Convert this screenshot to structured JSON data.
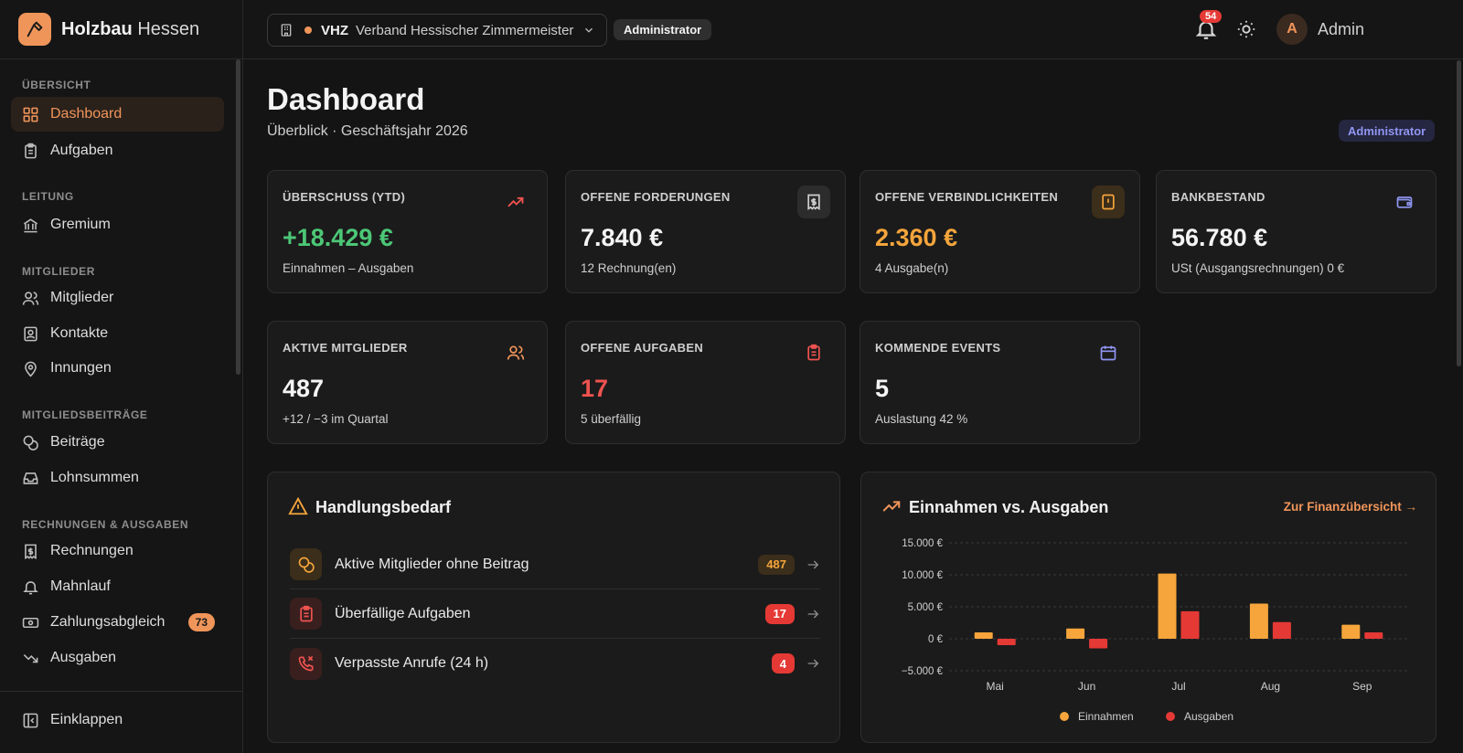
{
  "brand": {
    "name_bold": "Holzbau",
    "name_light": "Hessen"
  },
  "topbar": {
    "org_abbr": "VHZ",
    "org_name": "Verband Hessischer Zimmermeister",
    "role": "Administrator",
    "notifications": "54",
    "avatar_initial": "A",
    "user_name": "Admin"
  },
  "sidebar": {
    "sections": [
      {
        "title": "ÜBERSICHT"
      },
      {
        "title": "LEITUNG"
      },
      {
        "title": "MITGLIEDER"
      },
      {
        "title": "MITGLIEDSBEITRÄGE"
      },
      {
        "title": "RECHNUNGEN & AUSGABEN"
      }
    ],
    "items": [
      {
        "label": "Dashboard",
        "icon": "grid-icon"
      },
      {
        "label": "Aufgaben",
        "icon": "clipboard-icon"
      },
      {
        "label": "Gremium",
        "icon": "bank-icon"
      },
      {
        "label": "Mitglieder",
        "icon": "users-icon"
      },
      {
        "label": "Kontakte",
        "icon": "contact-icon"
      },
      {
        "label": "Innungen",
        "icon": "map-pin-icon"
      },
      {
        "label": "Beiträge",
        "icon": "coins-icon"
      },
      {
        "label": "Lohnsummen",
        "icon": "inbox-icon"
      },
      {
        "label": "Rechnungen",
        "icon": "receipt-icon"
      },
      {
        "label": "Mahnlauf",
        "icon": "bell-icon"
      },
      {
        "label": "Zahlungsabgleich",
        "icon": "banknote-icon",
        "badge": "73"
      },
      {
        "label": "Ausgaben",
        "icon": "trending-down-icon"
      }
    ],
    "collapse_label": "Einklappen"
  },
  "page": {
    "title": "Dashboard",
    "subtitle": "Überblick · Geschäftsjahr 2026",
    "role_badge": "Administrator"
  },
  "kpis": [
    {
      "label": "ÜBERSCHUSS (YTD)",
      "value": "+18.429 €",
      "note": "Einnahmen – Ausgaben",
      "color": "#4cc776",
      "icon": "trending-up-icon"
    },
    {
      "label": "OFFENE FORDERUNGEN",
      "value": "7.840 €",
      "note": "12 Rechnung(en)",
      "color": "#f4f4f4",
      "icon": "receipt-icon"
    },
    {
      "label": "OFFENE VERBINDLICHKEITEN",
      "value": "2.360 €",
      "note": "4 Ausgabe(n)",
      "color": "#f5a53b",
      "icon": "alert-file-icon"
    },
    {
      "label": "BANKBESTAND",
      "value": "56.780 €",
      "note": "USt (Ausgangsrechnungen) 0 €",
      "color": "#f4f4f4",
      "icon": "wallet-icon"
    },
    {
      "label": "AKTIVE MITGLIEDER",
      "value": "487",
      "note": "+12 / −3 im Quartal",
      "color": "#f4f4f4",
      "icon": "users-icon"
    },
    {
      "label": "OFFENE AUFGABEN",
      "value": "17",
      "note": "5 überfällig",
      "color": "#ef5350",
      "icon": "clipboard-icon"
    },
    {
      "label": "KOMMENDE EVENTS",
      "value": "5",
      "note": "Auslastung 42 %",
      "color": "#f4f4f4",
      "icon": "calendar-icon"
    }
  ],
  "actions": {
    "title": "Handlungsbedarf",
    "items": [
      {
        "label": "Aktive Mitglieder ohne Beitrag",
        "count": "487",
        "icon": "coins-icon"
      },
      {
        "label": "Überfällige Aufgaben",
        "count": "17",
        "icon": "clipboard-icon"
      },
      {
        "label": "Verpasste Anrufe (24 h)",
        "count": "4",
        "icon": "phone-missed-icon"
      }
    ]
  },
  "finance": {
    "title": "Einnahmen vs. Ausgaben",
    "link": "Zur Finanzübersicht →"
  },
  "chart_data": {
    "type": "bar",
    "title": "Einnahmen vs. Ausgaben",
    "categories": [
      "Mai",
      "Jun",
      "Jul",
      "Aug",
      "Sep"
    ],
    "series": [
      {
        "name": "Einnahmen",
        "values": [
          1000,
          1600,
          10200,
          5500,
          2200
        ],
        "color": "#f5a53b"
      },
      {
        "name": "Ausgaben",
        "values": [
          -1000,
          -1500,
          4300,
          2600,
          1000
        ],
        "color": "#e53935"
      }
    ],
    "ylim": [
      -5000,
      15000
    ],
    "yticks": [
      15000,
      10000,
      5000,
      0,
      -5000
    ],
    "ytick_labels": [
      "15.000 €",
      "10.000 €",
      "5.000 €",
      "0 €",
      "−5.000 €"
    ],
    "grid": true,
    "legend": "bottom-center"
  }
}
